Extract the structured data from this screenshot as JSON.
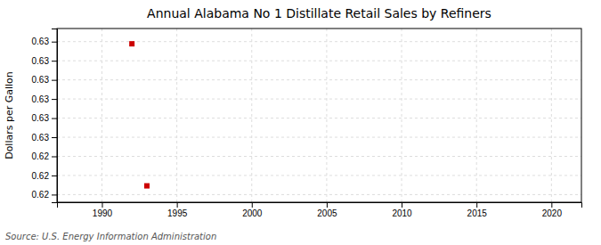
{
  "chart_data": {
    "type": "scatter",
    "title": "Annual Alabama No 1 Distillate Retail Sales by Refiners",
    "ylabel": "Dollars per Gallon",
    "source": "Source: U.S. Energy Information Administration",
    "x": [
      1992,
      1993
    ],
    "values": [
      0.6338,
      0.6208
    ],
    "color": "#cc0000",
    "marker": "square",
    "xlim": [
      1987,
      2022
    ],
    "ylim": [
      0.6193,
      0.6352
    ],
    "xticks": [
      1990,
      1995,
      2000,
      2005,
      2010,
      2015,
      2020
    ],
    "yticks": [
      0.62,
      {
        "value": 0.62175,
        "label": "0.62"
      },
      {
        "value": 0.6235,
        "label": "0.62"
      },
      {
        "value": 0.62525,
        "label": "0.63"
      },
      {
        "value": 0.627,
        "label": "0.63"
      },
      {
        "value": 0.62875,
        "label": "0.63"
      },
      {
        "value": 0.6305,
        "label": "0.63"
      },
      {
        "value": 0.63225,
        "label": "0.63"
      },
      {
        "value": 0.634,
        "label": "0.63"
      }
    ],
    "grid": true
  }
}
